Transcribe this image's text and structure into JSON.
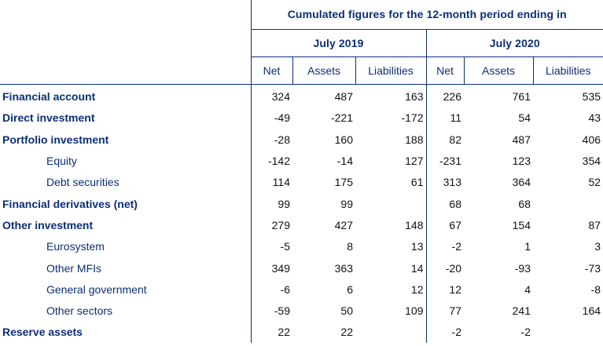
{
  "header": {
    "title": "Cumulated figures for the 12-month period ending in",
    "periods": [
      "July 2019",
      "July 2020"
    ],
    "columns": [
      "Net",
      "Assets",
      "Liabilities",
      "Net",
      "Assets",
      "Liabilities"
    ]
  },
  "rows": [
    {
      "label": "Financial account",
      "level": "main",
      "values": [
        "324",
        "487",
        "163",
        "226",
        "761",
        "535"
      ]
    },
    {
      "label": "Direct investment",
      "level": "main",
      "values": [
        "-49",
        "-221",
        "-172",
        "11",
        "54",
        "43"
      ]
    },
    {
      "label": "Portfolio investment",
      "level": "main",
      "values": [
        "-28",
        "160",
        "188",
        "82",
        "487",
        "406"
      ]
    },
    {
      "label": "Equity",
      "level": "sub",
      "values": [
        "-142",
        "-14",
        "127",
        "-231",
        "123",
        "354"
      ]
    },
    {
      "label": "Debt securities",
      "level": "sub",
      "values": [
        "114",
        "175",
        "61",
        "313",
        "364",
        "52"
      ]
    },
    {
      "label": "Financial derivatives (net)",
      "level": "main",
      "values": [
        "99",
        "99",
        "",
        "68",
        "68",
        ""
      ]
    },
    {
      "label": "Other investment",
      "level": "main",
      "values": [
        "279",
        "427",
        "148",
        "67",
        "154",
        "87"
      ]
    },
    {
      "label": "Eurosystem",
      "level": "sub",
      "values": [
        "-5",
        "8",
        "13",
        "-2",
        "1",
        "3"
      ]
    },
    {
      "label": "Other MFIs",
      "level": "sub",
      "values": [
        "349",
        "363",
        "14",
        "-20",
        "-93",
        "-73"
      ]
    },
    {
      "label": "General government",
      "level": "sub",
      "values": [
        "-6",
        "6",
        "12",
        "12",
        "4",
        "-8"
      ]
    },
    {
      "label": "Other sectors",
      "level": "sub",
      "values": [
        "-59",
        "50",
        "109",
        "77",
        "241",
        "164"
      ]
    },
    {
      "label": "Reserve assets",
      "level": "main",
      "values": [
        "22",
        "22",
        "",
        "-2",
        "-2",
        ""
      ]
    }
  ]
}
